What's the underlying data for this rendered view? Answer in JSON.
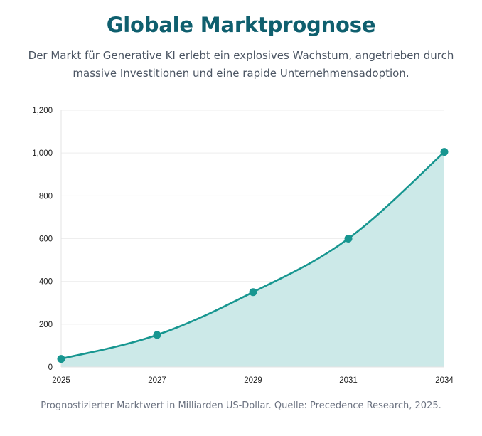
{
  "header": {
    "title": "Globale Marktprognose",
    "subtitle": "Der Markt für Generative KI erlebt ein explosives Wachstum, angetrieben durch massive Investitionen und eine rapide Unternehmensadoption."
  },
  "caption": "Prognostizierter Marktwert in Milliarden US-Dollar. Quelle: Precedence Research, 2025.",
  "colors": {
    "title": "#0f5f6e",
    "line": "#179690",
    "area_fill": "#cce9e8",
    "grid": "#eeeeee"
  },
  "chart_data": {
    "type": "area",
    "title": "",
    "xlabel": "",
    "ylabel": "",
    "x": [
      "2025",
      "2027",
      "2029",
      "2031",
      "2034"
    ],
    "series": [
      {
        "values": [
          38,
          150,
          350,
          600,
          1005
        ]
      }
    ],
    "y_ticks": [
      0,
      200,
      400,
      600,
      800,
      1000,
      1200
    ],
    "y_tick_labels": [
      "0",
      "200",
      "400",
      "600",
      "800",
      "1,000",
      "1,200"
    ],
    "ylim": [
      0,
      1200
    ],
    "grid": true,
    "legend": "none"
  }
}
